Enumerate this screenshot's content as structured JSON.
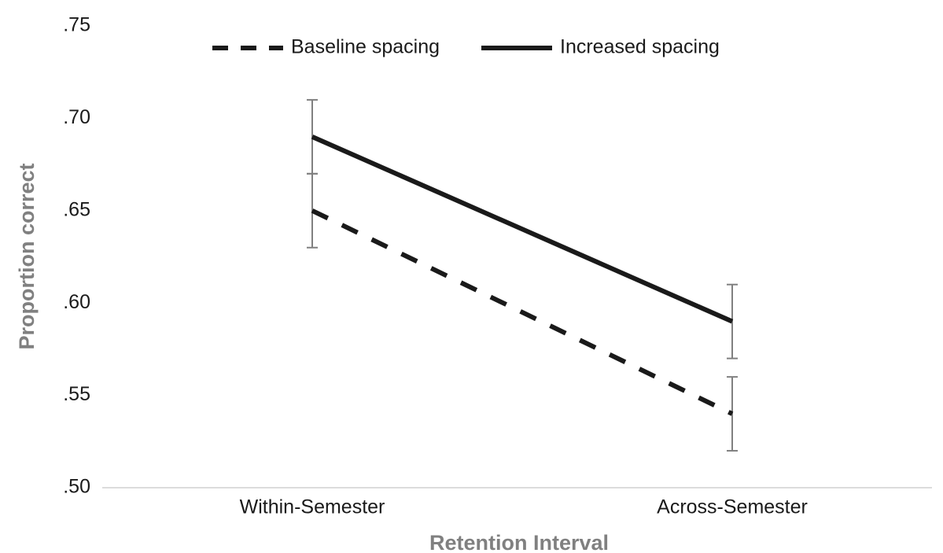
{
  "chart_data": {
    "type": "line",
    "x_label": "Retention Interval",
    "y_label": "Proportion correct",
    "categories": [
      "Within-Semester",
      "Across-Semester"
    ],
    "series": [
      {
        "name": "Baseline spacing",
        "color": "#1a1a1a",
        "line_style": "dashed",
        "values": [
          0.65,
          0.54
        ],
        "errors": [
          0.02,
          0.02
        ]
      },
      {
        "name": "Increased spacing",
        "color": "#1a1a1a",
        "line_style": "solid",
        "values": [
          0.69,
          0.59
        ],
        "errors": [
          0.02,
          0.02
        ]
      }
    ],
    "error_bar_color": "#808080",
    "ylim": [
      0.5,
      0.75
    ],
    "yticks": [
      {
        "value": 0.5,
        "label": ".50"
      },
      {
        "value": 0.55,
        "label": ".55"
      },
      {
        "value": 0.6,
        "label": ".60"
      },
      {
        "value": 0.65,
        "label": ".65"
      },
      {
        "value": 0.7,
        "label": ".70"
      },
      {
        "value": 0.75,
        "label": ".75"
      }
    ],
    "grid": false,
    "legend": "top"
  }
}
